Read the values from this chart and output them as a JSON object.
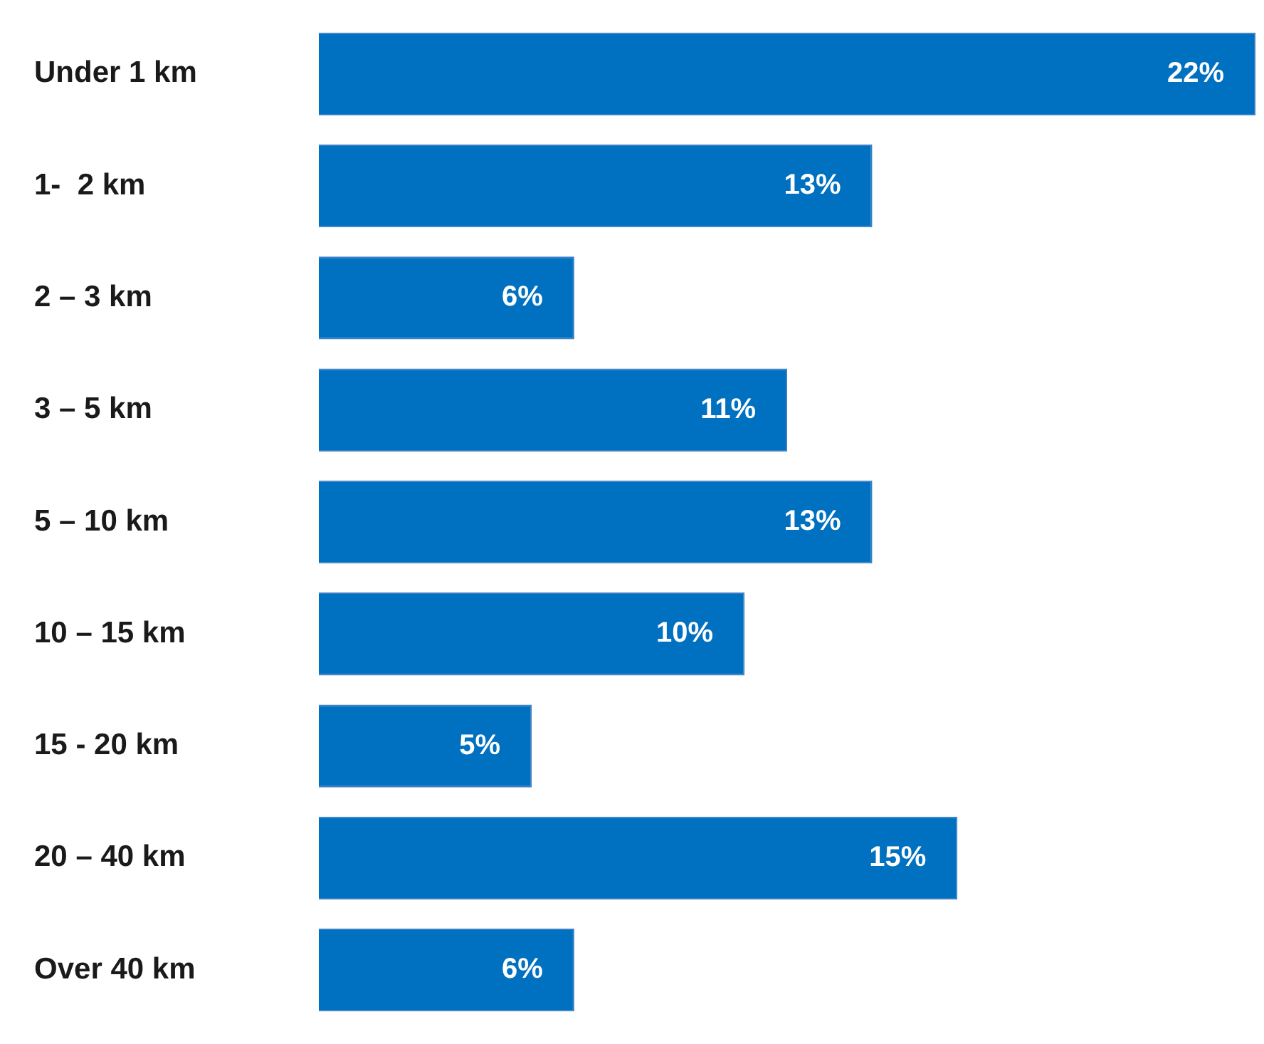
{
  "chart_data": {
    "type": "bar",
    "orientation": "horizontal",
    "categories": [
      "Under 1 km",
      "1-  2 km",
      "2 – 3 km",
      "3 – 5 km",
      "5 – 10 km",
      "10 – 15 km",
      "15 - 20 km",
      "20 – 40 km",
      "Over 40 km"
    ],
    "values": [
      22,
      13,
      6,
      11,
      13,
      10,
      5,
      15,
      6
    ],
    "value_labels": [
      "22%",
      "13%",
      "6%",
      "11%",
      "13%",
      "10%",
      "5%",
      "15%",
      "6%"
    ],
    "color": "#0070c0",
    "legend": false
  }
}
